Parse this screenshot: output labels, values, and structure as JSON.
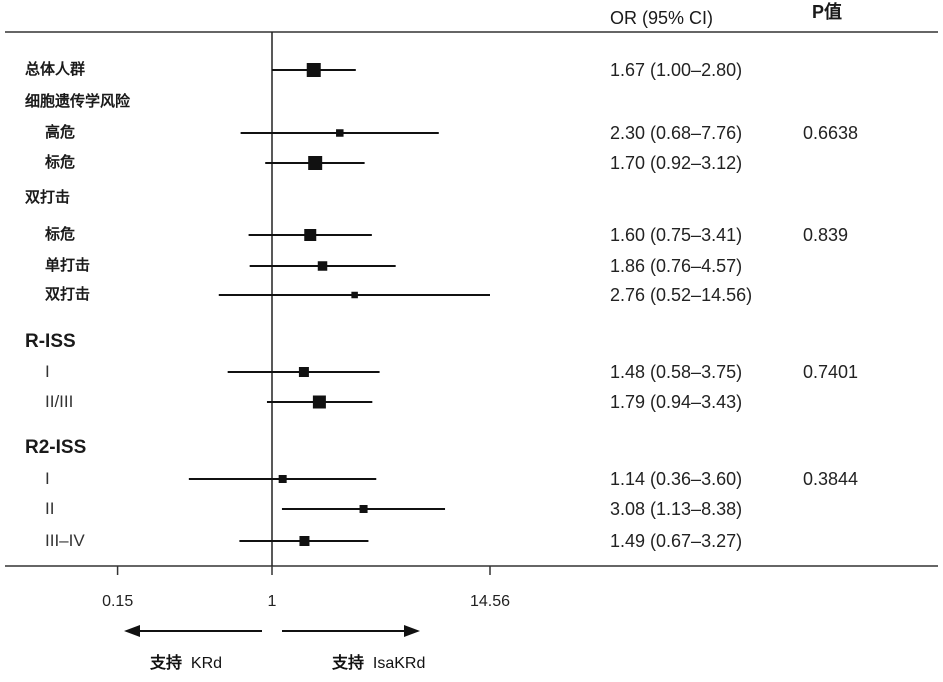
{
  "header": {
    "or_label": "OR (95% CI)",
    "p_label": "P值"
  },
  "chart_data": {
    "type": "forest",
    "x_scale": "log",
    "reference_line": 1,
    "xlim": [
      0.15,
      14.56
    ],
    "x_ticks": [
      {
        "value": 0.15,
        "label": "0.15"
      },
      {
        "value": 1,
        "label": "1"
      },
      {
        "value": 14.56,
        "label": "14.56"
      }
    ],
    "direction_left": {
      "prefix": "支持",
      "label": "KRd"
    },
    "direction_right": {
      "prefix": "支持",
      "label": "IsaKRd"
    },
    "rows": [
      {
        "label": "总体人群",
        "style": "group",
        "or": 1.67,
        "lo": 1.0,
        "hi": 2.8,
        "or_text": "1.67 (1.00–2.80)",
        "p": "",
        "weight": 1.0
      },
      {
        "label": "细胞遗传学风险",
        "style": "group",
        "or": null,
        "lo": null,
        "hi": null,
        "or_text": "",
        "p": "",
        "weight": 0
      },
      {
        "label": "高危",
        "style": "sub",
        "or": 2.3,
        "lo": 0.68,
        "hi": 7.76,
        "or_text": "2.30 (0.68–7.76)",
        "p": "0.6638",
        "weight": 0.35
      },
      {
        "label": "标危",
        "style": "sub",
        "or": 1.7,
        "lo": 0.92,
        "hi": 3.12,
        "or_text": "1.70 (0.92–3.12)",
        "p": "",
        "weight": 1.0
      },
      {
        "label": "双打击",
        "style": "group",
        "or": null,
        "lo": null,
        "hi": null,
        "or_text": "",
        "p": "",
        "weight": 0
      },
      {
        "label": "标危",
        "style": "sub",
        "or": 1.6,
        "lo": 0.75,
        "hi": 3.41,
        "or_text": "1.60 (0.75–3.41)",
        "p": "0.839",
        "weight": 0.8
      },
      {
        "label": "单打击",
        "style": "sub",
        "or": 1.86,
        "lo": 0.76,
        "hi": 4.57,
        "or_text": "1.86 (0.76–4.57)",
        "p": "",
        "weight": 0.55
      },
      {
        "label": "双打击",
        "style": "sub",
        "or": 2.76,
        "lo": 0.52,
        "hi": 14.56,
        "or_text": "2.76 (0.52–14.56)",
        "p": "",
        "weight": 0.25
      },
      {
        "label": "R-ISS",
        "style": "big",
        "or": null,
        "lo": null,
        "hi": null,
        "or_text": "",
        "p": "",
        "weight": 0
      },
      {
        "label": "I",
        "style": "roman",
        "or": 1.48,
        "lo": 0.58,
        "hi": 3.75,
        "or_text": "1.48 (0.58–3.75)",
        "p": "0.7401",
        "weight": 0.6
      },
      {
        "label": "II/III",
        "style": "roman",
        "or": 1.79,
        "lo": 0.94,
        "hi": 3.43,
        "or_text": "1.79 (0.94–3.43)",
        "p": "",
        "weight": 0.9
      },
      {
        "label": "R2-ISS",
        "style": "big",
        "or": null,
        "lo": null,
        "hi": null,
        "or_text": "",
        "p": "",
        "weight": 0
      },
      {
        "label": "I",
        "style": "roman",
        "or": 1.14,
        "lo": 0.36,
        "hi": 3.6,
        "or_text": "1.14 (0.36–3.60)",
        "p": "0.3844",
        "weight": 0.4
      },
      {
        "label": "II",
        "style": "roman",
        "or": 3.08,
        "lo": 1.13,
        "hi": 8.38,
        "or_text": "3.08 (1.13–8.38)",
        "p": "",
        "weight": 0.4
      },
      {
        "label": "III–IV",
        "style": "roman",
        "or": 1.49,
        "lo": 0.67,
        "hi": 3.27,
        "or_text": "1.49 (0.67–3.27)",
        "p": "",
        "weight": 0.6
      }
    ]
  }
}
